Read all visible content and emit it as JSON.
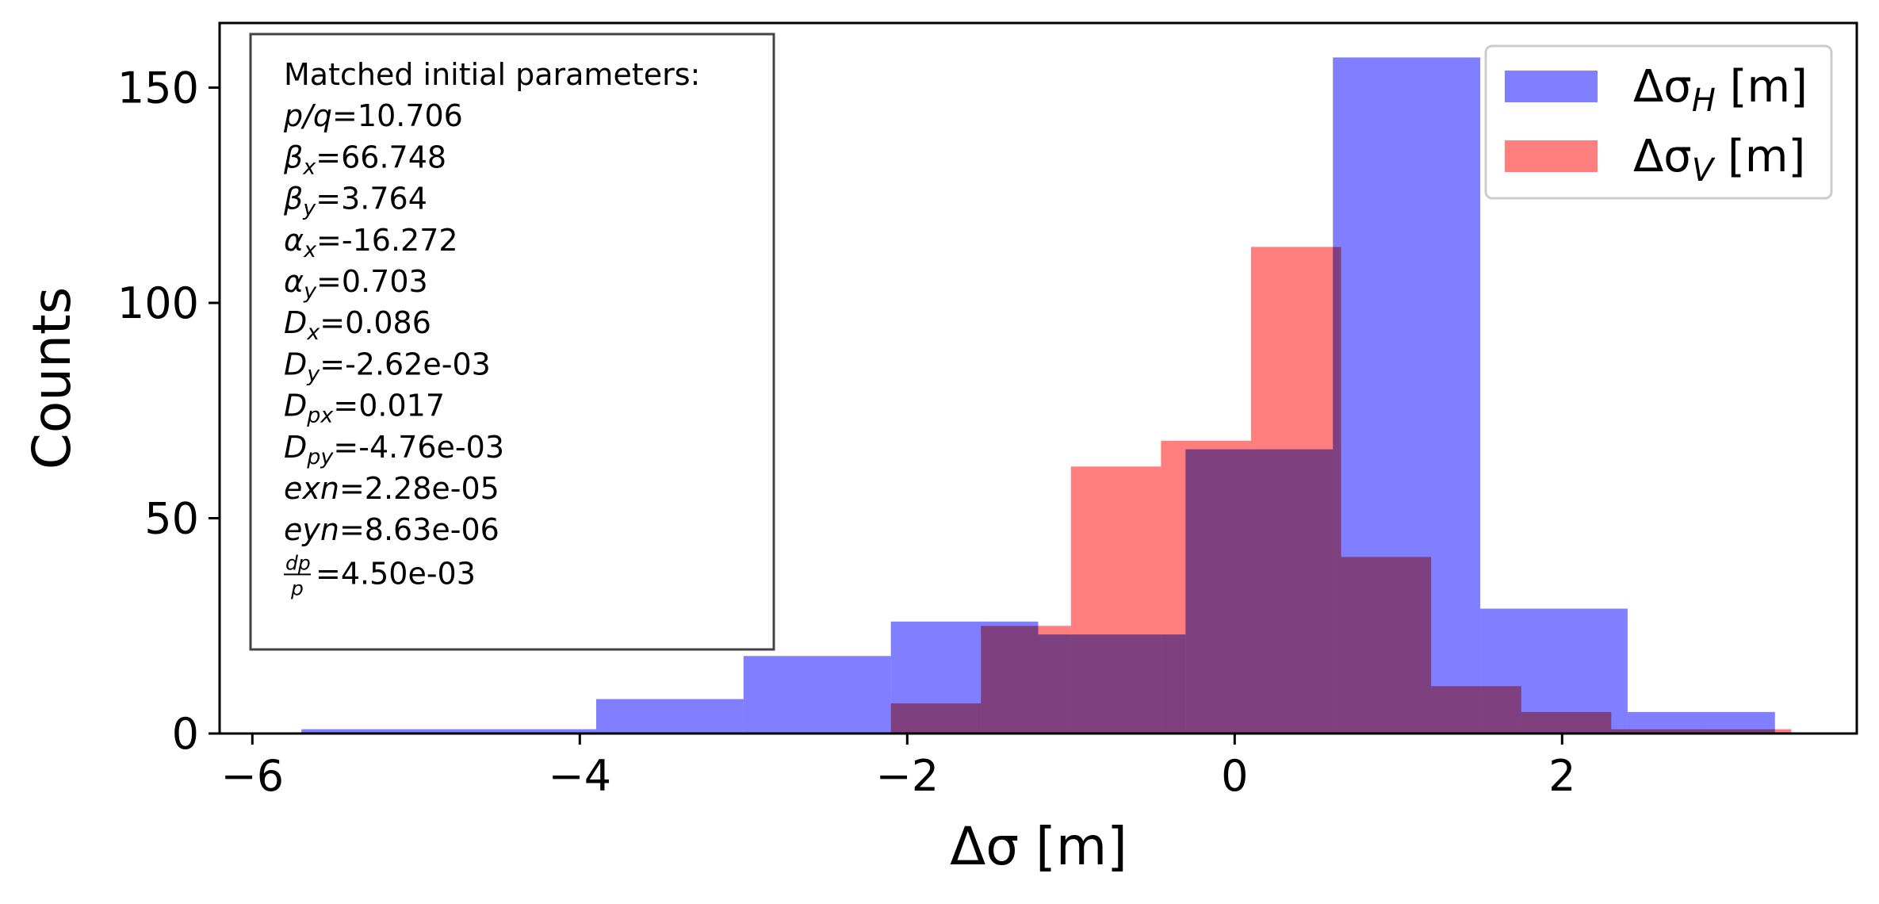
{
  "chart_data": {
    "type": "bar",
    "subtype": "histogram",
    "xlabel": "Δσ [m]",
    "ylabel": "Counts",
    "xlim": [
      -6.2,
      3.8
    ],
    "ylim": [
      0,
      165
    ],
    "xticks": [
      -6,
      -4,
      -2,
      0,
      2
    ],
    "xtick_labels": [
      "−6",
      "−4",
      "−2",
      "0",
      "2"
    ],
    "yticks": [
      0,
      50,
      100,
      150
    ],
    "ytick_labels": [
      "0",
      "50",
      "100",
      "150"
    ],
    "grid": false,
    "legend_position": "top-right",
    "series": [
      {
        "name_base": "Δσ",
        "name_sub": "H",
        "name_unit": " [m]",
        "color": "#7f7fff",
        "bins": [
          {
            "x0": -5.7,
            "x1": -3.9,
            "count": 1
          },
          {
            "x0": -3.9,
            "x1": -3.0,
            "count": 8
          },
          {
            "x0": -3.0,
            "x1": -2.1,
            "count": 18
          },
          {
            "x0": -2.1,
            "x1": -1.2,
            "count": 26
          },
          {
            "x0": -1.2,
            "x1": -0.3,
            "count": 23
          },
          {
            "x0": -0.3,
            "x1": 0.6,
            "count": 66
          },
          {
            "x0": 0.6,
            "x1": 1.5,
            "count": 157
          },
          {
            "x0": 1.5,
            "x1": 2.4,
            "count": 29
          },
          {
            "x0": 2.4,
            "x1": 3.3,
            "count": 5
          }
        ]
      },
      {
        "name_base": "Δσ",
        "name_sub": "V",
        "name_unit": " [m]",
        "color": "#ff7f7f",
        "bins": [
          {
            "x0": -2.1,
            "x1": -1.55,
            "count": 7
          },
          {
            "x0": -1.55,
            "x1": -1.0,
            "count": 25
          },
          {
            "x0": -1.0,
            "x1": -0.45,
            "count": 62
          },
          {
            "x0": -0.45,
            "x1": 0.1,
            "count": 68
          },
          {
            "x0": 0.1,
            "x1": 0.65,
            "count": 113
          },
          {
            "x0": 0.65,
            "x1": 1.2,
            "count": 41
          },
          {
            "x0": 1.2,
            "x1": 1.75,
            "count": 11
          },
          {
            "x0": 1.75,
            "x1": 2.3,
            "count": 5
          },
          {
            "x0": 2.3,
            "x1": 2.85,
            "count": 1
          },
          {
            "x0": 2.85,
            "x1": 3.4,
            "count": 1
          }
        ]
      }
    ],
    "annotation": {
      "title": "Matched initial parameters:",
      "lines": [
        {
          "sym": "p/q",
          "sub": "",
          "val": "=10.706"
        },
        {
          "sym": "β",
          "sub": "x",
          "val": "=66.748"
        },
        {
          "sym": "β",
          "sub": "y",
          "val": "=3.764"
        },
        {
          "sym": "α",
          "sub": "x",
          "val": "=-16.272"
        },
        {
          "sym": "α",
          "sub": "y",
          "val": "=0.703"
        },
        {
          "sym": "D",
          "sub": "x",
          "val": "=0.086"
        },
        {
          "sym": "D",
          "sub": "y",
          "val": "=-2.62e-03"
        },
        {
          "sym": "D",
          "sub": "px",
          "val": "=0.017"
        },
        {
          "sym": "D",
          "sub": "py",
          "val": "=-4.76e-03"
        },
        {
          "sym": "exn",
          "sub": "",
          "val": "=2.28e-05"
        },
        {
          "sym": "eyn",
          "sub": "",
          "val": "=8.63e-06"
        }
      ],
      "frac_num": "dp",
      "frac_den": "p",
      "frac_val": "=4.50e-03"
    }
  }
}
